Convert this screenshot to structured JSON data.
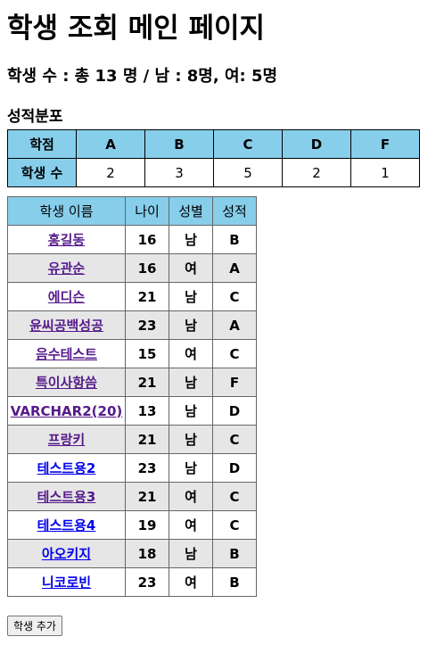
{
  "page": {
    "title": "학생 조회 메인 페이지",
    "summary": "학생 수 : 총 13 명 / 남 : 8명, 여: 5명",
    "grade_section_title": "성적분포"
  },
  "grade_distribution": {
    "header_label": "학점",
    "count_label": "학생 수",
    "grades": [
      "A",
      "B",
      "C",
      "D",
      "F"
    ],
    "counts": [
      "2",
      "3",
      "5",
      "2",
      "1"
    ]
  },
  "students": {
    "columns": [
      "학생 이름",
      "나이",
      "성별",
      "성적"
    ],
    "rows": [
      {
        "name": "홍길동",
        "age": "16",
        "gender": "남",
        "grade": "B",
        "link_state": "visited"
      },
      {
        "name": "유관순",
        "age": "16",
        "gender": "여",
        "grade": "A",
        "link_state": "visited"
      },
      {
        "name": "에디슨",
        "age": "21",
        "gender": "남",
        "grade": "C",
        "link_state": "visited"
      },
      {
        "name": "윤씨공백성공",
        "age": "23",
        "gender": "남",
        "grade": "A",
        "link_state": "visited"
      },
      {
        "name": "음수테스트",
        "age": "15",
        "gender": "여",
        "grade": "C",
        "link_state": "visited"
      },
      {
        "name": "특이사항씀",
        "age": "21",
        "gender": "남",
        "grade": "F",
        "link_state": "visited"
      },
      {
        "name": "VARCHAR2(20)",
        "age": "13",
        "gender": "남",
        "grade": "D",
        "link_state": "visited"
      },
      {
        "name": "프랑키",
        "age": "21",
        "gender": "남",
        "grade": "C",
        "link_state": "visited"
      },
      {
        "name": "테스트용2",
        "age": "23",
        "gender": "남",
        "grade": "D",
        "link_state": "unvisited"
      },
      {
        "name": "테스트용3",
        "age": "21",
        "gender": "여",
        "grade": "C",
        "link_state": "visited"
      },
      {
        "name": "테스트용4",
        "age": "19",
        "gender": "여",
        "grade": "C",
        "link_state": "unvisited"
      },
      {
        "name": "아오키지",
        "age": "18",
        "gender": "남",
        "grade": "B",
        "link_state": "unvisited"
      },
      {
        "name": "니코로빈",
        "age": "23",
        "gender": "여",
        "grade": "B",
        "link_state": "unvisited"
      }
    ]
  },
  "actions": {
    "add_student_label": "학생 추가"
  },
  "colors": {
    "header_bg": "#87CEEB",
    "alt_row_bg": "#e6e6e6",
    "link_visited": "#551A8B",
    "link_unvisited": "#0000EE"
  }
}
